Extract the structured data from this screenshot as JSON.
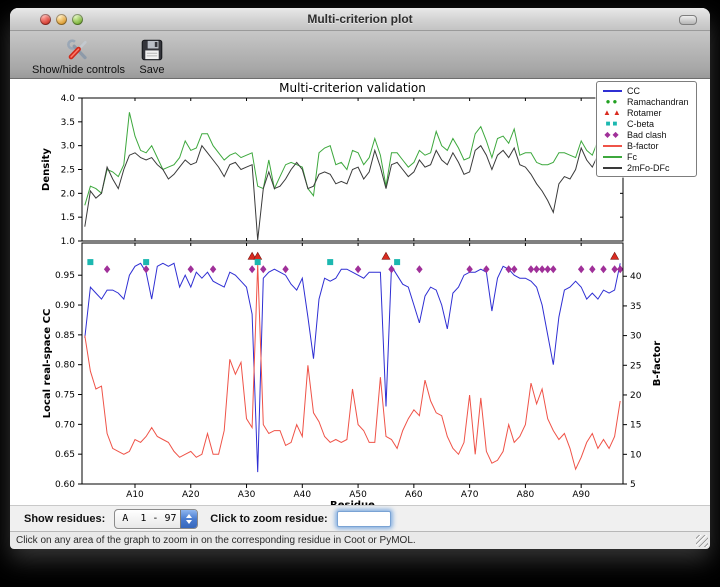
{
  "window": {
    "title": "Multi-criterion plot"
  },
  "toolbar": {
    "buttons": [
      {
        "label": "Show/hide controls"
      },
      {
        "label": "Save"
      }
    ]
  },
  "controls": {
    "show_residues_label": "Show residues:",
    "residue_range_value": "A  1 - 97",
    "zoom_label": "Click to zoom residue:",
    "zoom_input_value": ""
  },
  "statusbar": {
    "message": "Click on any area of the graph to zoom in on the corresponding residue in Coot or PyMOL."
  },
  "colors": {
    "cc_blue": "#2f2fd3",
    "bfactor_red": "#ef5348",
    "fc_green": "#3da83d",
    "model_black": "#3a3a3a",
    "ramachandran_green": "#21a121",
    "rotamer_red": "#d92b20",
    "cbeta_cyan": "#1cb8b0",
    "badclash_purple": "#a03099",
    "stepper_blue": "#4a7cd0"
  },
  "legend": {
    "entries": [
      {
        "label": "CC",
        "type": "line",
        "color": "#2f2fd3"
      },
      {
        "label": "Ramachandran",
        "type": "markers",
        "glyph": "●",
        "color": "#21a121"
      },
      {
        "label": "Rotamer",
        "type": "markers",
        "glyph": "▲",
        "color": "#d92b20"
      },
      {
        "label": "C-beta",
        "type": "markers",
        "glyph": "■",
        "color": "#1cb8b0"
      },
      {
        "label": "Bad clash",
        "type": "markers",
        "glyph": "◆",
        "color": "#a03099"
      },
      {
        "label": "B-factor",
        "type": "line",
        "color": "#ef5348"
      },
      {
        "label": "Fc",
        "type": "line",
        "color": "#3da83d"
      },
      {
        "label": "2mFo-DFc",
        "type": "line",
        "color": "#3a3a3a"
      }
    ]
  },
  "chart_data": [
    {
      "type": "line",
      "title": "Multi-criterion validation",
      "ylabel": "Density",
      "ylim": [
        1.0,
        4.0
      ],
      "yticks": [
        {
          "v": 1.0,
          "label": "1.0"
        },
        {
          "v": 1.5,
          "label": "1.5"
        },
        {
          "v": 2.0,
          "label": "2.0"
        },
        {
          "v": 2.5,
          "label": "2.5"
        },
        {
          "v": 3.0,
          "label": "3.0"
        },
        {
          "v": 3.5,
          "label": "3.5"
        },
        {
          "v": 4.0,
          "label": "4.0"
        }
      ],
      "x_first_residue": 1,
      "series": [
        {
          "name": "Fc",
          "color": "#3da83d",
          "values": [
            1.75,
            2.15,
            2.1,
            2.0,
            2.5,
            2.45,
            2.35,
            2.6,
            3.7,
            3.2,
            2.9,
            2.85,
            3.0,
            2.75,
            2.5,
            2.55,
            2.6,
            2.75,
            3.1,
            2.9,
            2.95,
            3.25,
            3.25,
            3.0,
            2.85,
            2.7,
            2.8,
            2.85,
            2.75,
            2.8,
            2.85,
            2.15,
            2.1,
            2.7,
            2.1,
            2.35,
            2.6,
            2.65,
            2.6,
            2.55,
            2.1,
            1.95,
            2.85,
            2.95,
            3.0,
            2.6,
            2.65,
            2.5,
            2.9,
            2.85,
            2.6,
            2.75,
            3.15,
            2.8,
            2.15,
            2.85,
            2.85,
            2.7,
            2.55,
            2.65,
            2.9,
            2.8,
            2.85,
            3.3,
            3.0,
            2.9,
            3.15,
            2.95,
            2.7,
            2.75,
            3.25,
            3.4,
            3.1,
            2.75,
            3.15,
            3.2,
            3.05,
            3.35,
            2.8,
            2.85,
            2.85,
            2.65,
            2.6,
            2.6,
            2.65,
            2.85,
            2.85,
            2.8,
            2.75,
            3.1,
            2.9,
            2.8,
            3.1,
            3.25,
            3.5,
            3.05,
            3.05
          ]
        },
        {
          "name": "2mFo-DFc",
          "color": "#3a3a3a",
          "values": [
            1.3,
            2.05,
            1.9,
            2.0,
            2.55,
            2.3,
            2.1,
            2.5,
            2.8,
            2.85,
            2.75,
            2.7,
            2.75,
            2.6,
            2.5,
            2.3,
            2.4,
            2.55,
            2.7,
            2.6,
            2.65,
            3.0,
            2.85,
            2.7,
            2.55,
            2.35,
            2.6,
            2.65,
            2.5,
            2.55,
            2.6,
            1.02,
            2.1,
            2.45,
            2.1,
            2.15,
            2.3,
            2.5,
            2.65,
            2.5,
            2.1,
            2.15,
            2.4,
            2.45,
            2.4,
            2.2,
            2.25,
            2.2,
            2.5,
            2.55,
            2.3,
            2.45,
            2.9,
            2.55,
            2.1,
            2.6,
            2.65,
            2.5,
            2.35,
            2.45,
            2.7,
            2.55,
            2.6,
            2.9,
            2.7,
            2.6,
            2.85,
            2.65,
            2.4,
            2.45,
            2.9,
            3.0,
            2.8,
            2.5,
            2.8,
            2.9,
            2.75,
            2.95,
            2.6,
            2.55,
            2.4,
            2.2,
            2.05,
            1.85,
            1.6,
            2.2,
            2.35,
            2.3,
            2.5,
            2.95,
            2.7,
            2.55,
            2.8,
            2.9,
            3.15,
            2.5,
            2.9
          ]
        }
      ]
    },
    {
      "type": "line+markers",
      "xlabel": "Residue",
      "ylabel_left": "Local real-space CC",
      "ylim_left": [
        0.6,
        1.004
      ],
      "yticks_left": [
        {
          "v": 0.6,
          "label": "0.60"
        },
        {
          "v": 0.65,
          "label": "0.65"
        },
        {
          "v": 0.7,
          "label": "0.70"
        },
        {
          "v": 0.75,
          "label": "0.75"
        },
        {
          "v": 0.8,
          "label": "0.80"
        },
        {
          "v": 0.85,
          "label": "0.85"
        },
        {
          "v": 0.9,
          "label": "0.90"
        },
        {
          "v": 0.95,
          "label": "0.95"
        }
      ],
      "ylabel_right": "B-factor",
      "ylim_right": [
        5,
        45.6
      ],
      "yticks_right": [
        {
          "v": 5,
          "label": "5"
        },
        {
          "v": 10,
          "label": "10"
        },
        {
          "v": 15,
          "label": "15"
        },
        {
          "v": 20,
          "label": "20"
        },
        {
          "v": 25,
          "label": "25"
        },
        {
          "v": 30,
          "label": "30"
        },
        {
          "v": 35,
          "label": "35"
        },
        {
          "v": 40,
          "label": "40"
        }
      ],
      "xticks": [
        {
          "v": 10,
          "label": "A10"
        },
        {
          "v": 20,
          "label": "A20"
        },
        {
          "v": 30,
          "label": "A30"
        },
        {
          "v": 40,
          "label": "A40"
        },
        {
          "v": 50,
          "label": "A50"
        },
        {
          "v": 60,
          "label": "A60"
        },
        {
          "v": 70,
          "label": "A70"
        },
        {
          "v": 80,
          "label": "A80"
        },
        {
          "v": 90,
          "label": "A90"
        }
      ],
      "x_first_residue": 1,
      "x_last_residue": 97,
      "series": [
        {
          "name": "CC",
          "axis": "left",
          "color": "#2f2fd3",
          "values": [
            0.845,
            0.93,
            0.92,
            0.91,
            0.925,
            0.925,
            0.92,
            0.91,
            0.95,
            0.965,
            0.97,
            0.955,
            0.91,
            0.965,
            0.97,
            0.965,
            0.97,
            0.93,
            0.95,
            0.93,
            0.955,
            0.945,
            0.955,
            0.94,
            0.935,
            0.93,
            0.955,
            0.95,
            0.94,
            0.93,
            0.885,
            0.62,
            0.945,
            0.955,
            0.96,
            0.955,
            0.95,
            0.935,
            0.925,
            0.945,
            0.88,
            0.81,
            0.91,
            0.945,
            0.94,
            0.945,
            0.96,
            0.96,
            0.955,
            0.95,
            0.945,
            0.955,
            0.955,
            0.955,
            0.73,
            0.965,
            0.95,
            0.935,
            0.93,
            0.9,
            0.87,
            0.915,
            0.93,
            0.925,
            0.9,
            0.86,
            0.92,
            0.93,
            0.95,
            0.955,
            0.955,
            0.96,
            0.955,
            0.89,
            0.945,
            0.965,
            0.96,
            0.95,
            0.945,
            0.945,
            0.94,
            0.93,
            0.9,
            0.85,
            0.8,
            0.88,
            0.925,
            0.93,
            0.94,
            0.93,
            0.91,
            0.92,
            0.91,
            0.925,
            0.92,
            0.925,
            0.97
          ]
        },
        {
          "name": "B-factor",
          "axis": "right",
          "color": "#ef5348",
          "values": [
            30,
            24,
            21,
            21.5,
            13.5,
            11,
            10.5,
            10,
            10.5,
            12.5,
            12,
            13,
            14.5,
            13,
            12.5,
            12,
            10.5,
            9.5,
            10,
            10.5,
            9.5,
            10,
            13.5,
            10,
            10,
            14,
            26,
            23.5,
            25.5,
            16,
            14.5,
            42,
            15,
            13.5,
            14,
            14,
            11.5,
            12,
            15,
            13,
            25,
            17,
            15.5,
            13,
            12,
            12.5,
            12,
            12.5,
            21,
            15,
            14,
            12,
            12,
            23,
            13,
            12.5,
            11,
            14,
            16,
            17.5,
            16.5,
            22.5,
            19,
            17,
            16.5,
            13,
            11,
            10,
            12,
            20,
            10,
            19.5,
            10.5,
            8.5,
            9,
            10.5,
            15,
            12,
            13,
            15,
            22,
            18.5,
            21,
            16,
            14,
            12.5,
            13.5,
            11,
            7.5,
            9.5,
            12,
            13.5,
            11,
            12.5,
            11,
            13,
            19
          ]
        }
      ],
      "marker_series": [
        {
          "name": "Ramachandran",
          "shape": "circle",
          "color": "#21a121",
          "y_cc": 0.99,
          "residues": []
        },
        {
          "name": "Rotamer",
          "shape": "triangle",
          "color": "#d92b20",
          "y_cc": 0.982,
          "residues": [
            31,
            32,
            55,
            96
          ]
        },
        {
          "name": "C-beta",
          "shape": "square",
          "color": "#1cb8b0",
          "y_cc": 0.972,
          "residues": [
            2,
            12,
            32,
            45,
            57
          ]
        },
        {
          "name": "Bad clash",
          "shape": "diamond",
          "color": "#a03099",
          "y_cc": 0.96,
          "residues": [
            5,
            12,
            20,
            24,
            31,
            33,
            37,
            50,
            56,
            61,
            70,
            73,
            77,
            78,
            81,
            82,
            83,
            84,
            85,
            90,
            92,
            94,
            96,
            97
          ]
        }
      ]
    }
  ]
}
